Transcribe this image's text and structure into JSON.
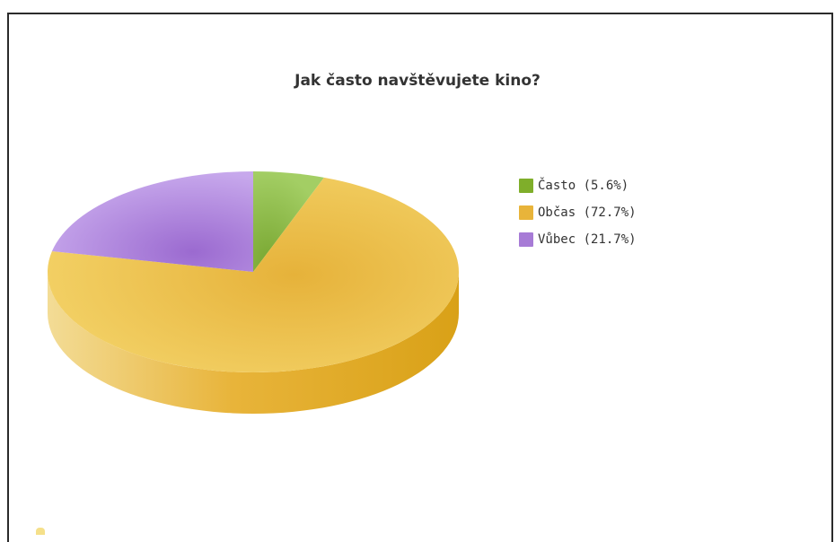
{
  "chart_data": {
    "type": "pie",
    "title": "Jak často navštěvujete kino?",
    "slices": [
      {
        "label": "Často",
        "value": 5.6,
        "legend": "Často (5.6%)",
        "color": "#7fae2a"
      },
      {
        "label": "Občas",
        "value": 72.7,
        "legend": "Občas (72.7%)",
        "color": "#e8b43a"
      },
      {
        "label": "Vůbec",
        "value": 21.7,
        "legend": "Vůbec (21.7%)",
        "color": "#a77bd6"
      }
    ],
    "style": "3d",
    "legend_position": "right"
  }
}
